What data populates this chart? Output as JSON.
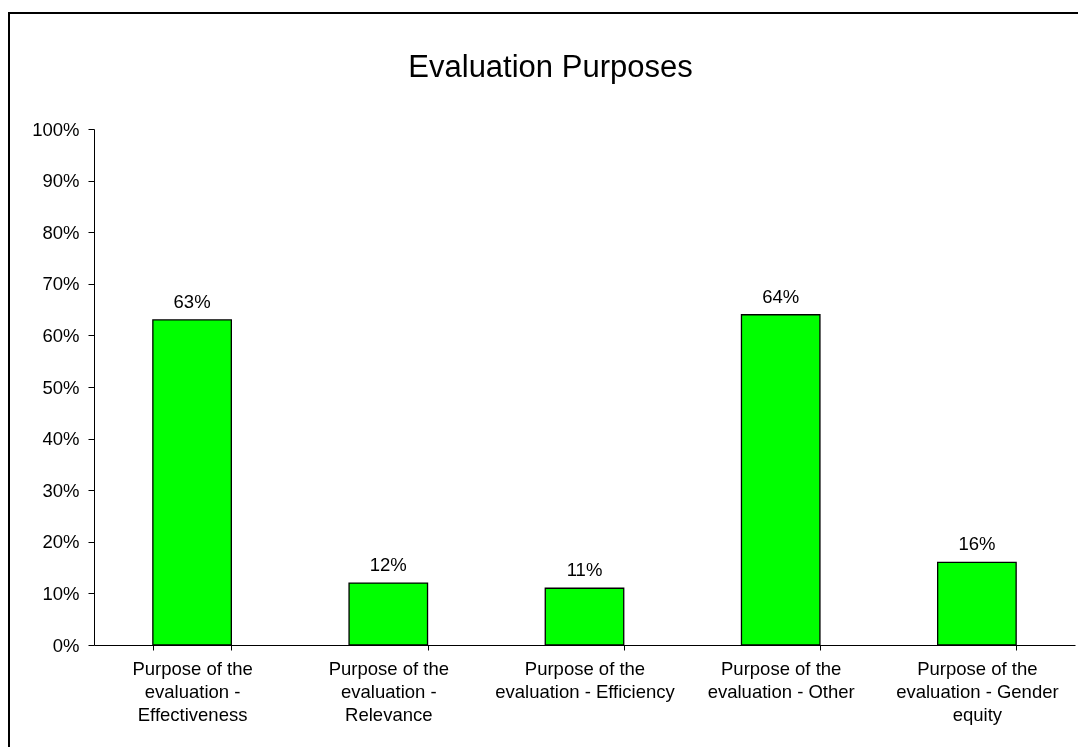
{
  "chart_data": {
    "type": "bar",
    "title": "Evaluation Purposes",
    "categories": [
      "Purpose of the evaluation - Effectiveness",
      "Purpose of the evaluation - Relevance",
      "Purpose of the evaluation - Efficiency",
      "Purpose of the evaluation - Other",
      "Purpose of the evaluation - Gender equity"
    ],
    "values": [
      63,
      12,
      11,
      64,
      16
    ],
    "color": "#00ff00",
    "value_labels": [
      "63%",
      "12%",
      "11%",
      "64%",
      "16%"
    ],
    "ylim": [
      0,
      100
    ],
    "yticks": [
      {
        "value": 0,
        "label": "0%"
      },
      {
        "value": 10,
        "label": "10%"
      },
      {
        "value": 20,
        "label": "20%"
      },
      {
        "value": 30,
        "label": "30%"
      },
      {
        "value": 40,
        "label": "40%"
      },
      {
        "value": 50,
        "label": "50%"
      },
      {
        "value": 60,
        "label": "60%"
      },
      {
        "value": 70,
        "label": "70%"
      },
      {
        "value": 80,
        "label": "80%"
      },
      {
        "value": 90,
        "label": "90%"
      },
      {
        "value": 100,
        "label": "100%"
      }
    ]
  }
}
